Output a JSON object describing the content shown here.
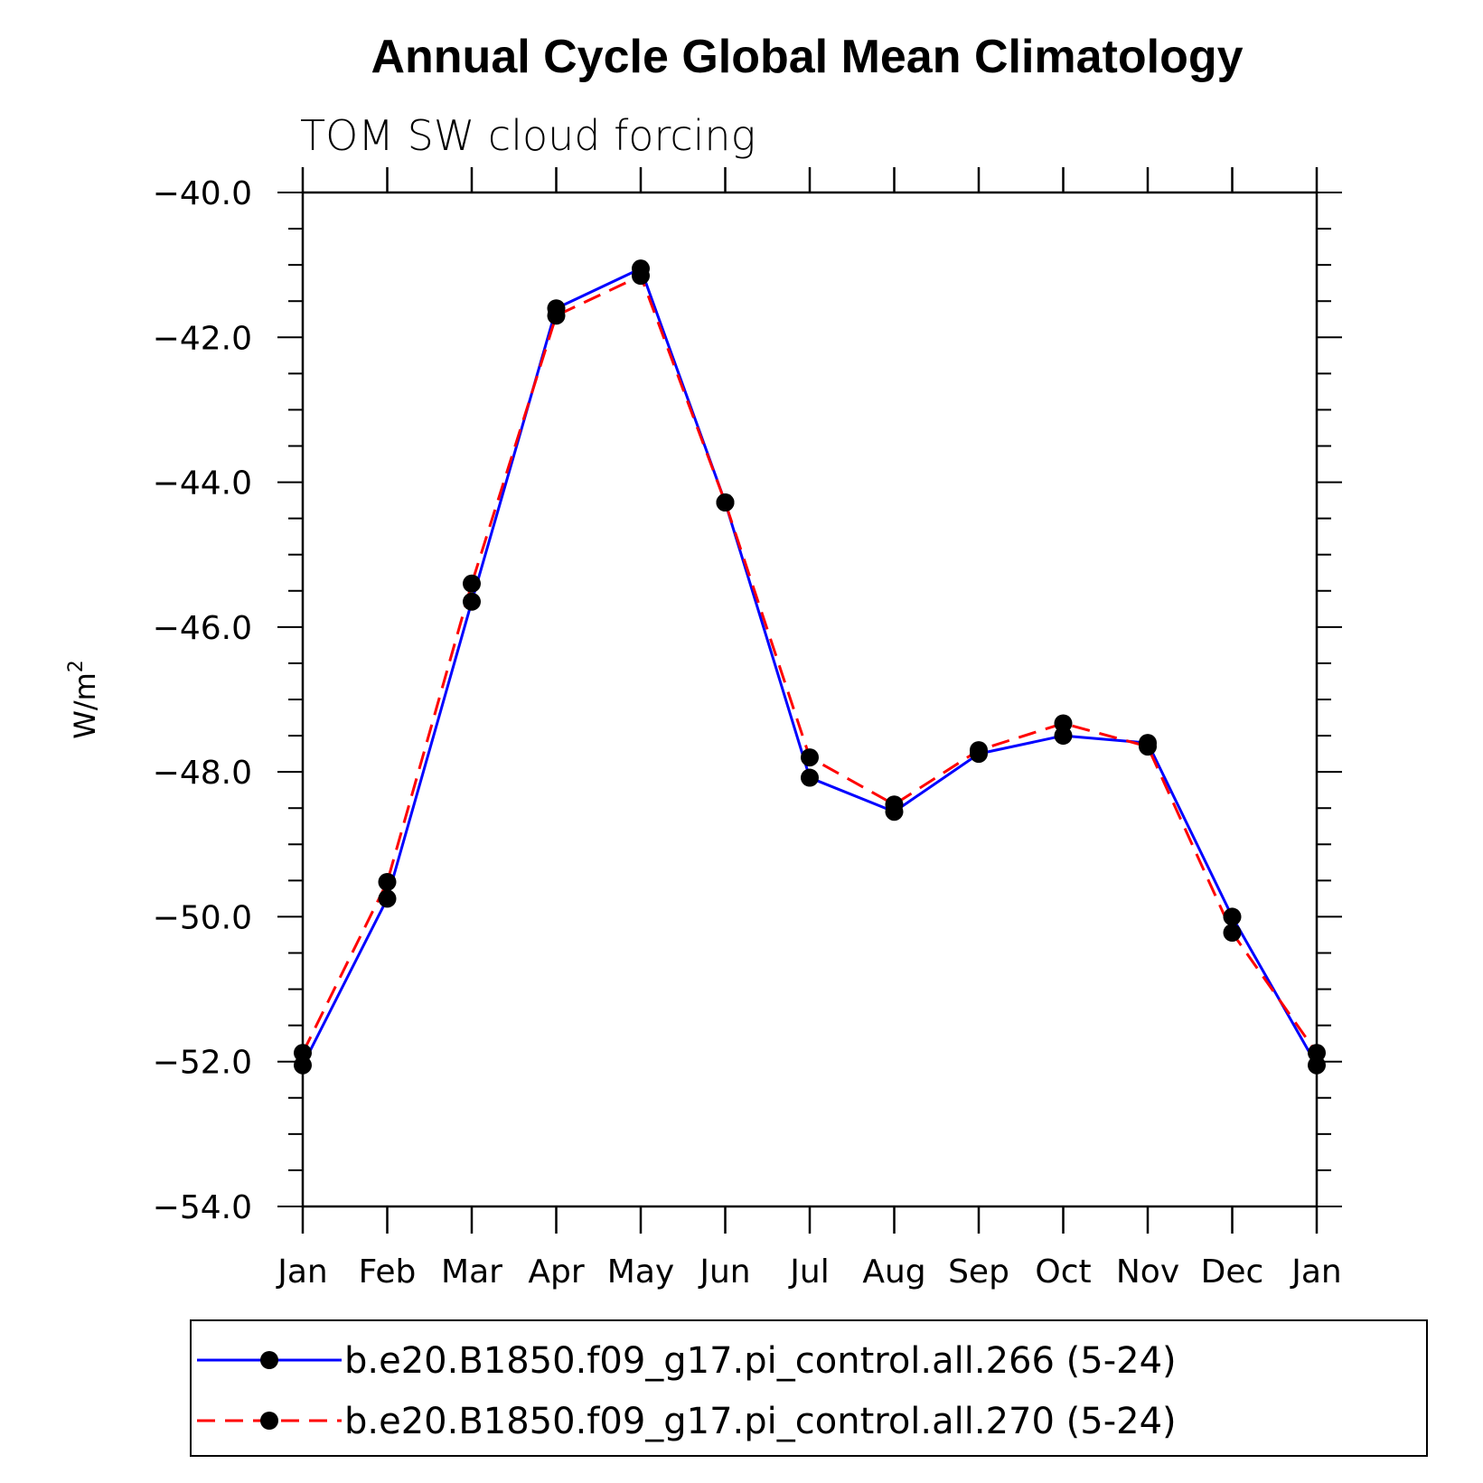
{
  "chart_data": {
    "type": "line",
    "title": "Annual Cycle Global Mean Climatology",
    "subtitle": "TOM SW cloud forcing",
    "xlabel": "",
    "ylabel": "W/m",
    "ylabel_superscript": "2",
    "categories": [
      "Jan",
      "Feb",
      "Mar",
      "Apr",
      "May",
      "Jun",
      "Jul",
      "Aug",
      "Sep",
      "Oct",
      "Nov",
      "Dec",
      "Jan"
    ],
    "ylim": [
      -54.0,
      -40.0
    ],
    "yticks": [
      "-40.0",
      "-42.0",
      "-44.0",
      "-46.0",
      "-48.0",
      "-50.0",
      "-52.0",
      "-54.0"
    ],
    "series": [
      {
        "name": "b.e20.B1850.f09_g17.pi_control.all.266 (5-24)",
        "color": "#0000ff",
        "style": "solid",
        "values": [
          -52.05,
          -49.75,
          -45.65,
          -41.6,
          -41.05,
          -44.28,
          -48.08,
          -48.55,
          -47.75,
          -47.5,
          -47.6,
          -50.0,
          -52.05
        ]
      },
      {
        "name": "b.e20.B1850.f09_g17.pi_control.all.270 (5-24)",
        "color": "#ff0000",
        "style": "dashed",
        "values": [
          -51.88,
          -49.52,
          -45.4,
          -41.7,
          -41.15,
          -44.28,
          -47.8,
          -48.45,
          -47.7,
          -47.33,
          -47.65,
          -50.22,
          -51.88
        ]
      }
    ],
    "legend_position": "bottom"
  }
}
